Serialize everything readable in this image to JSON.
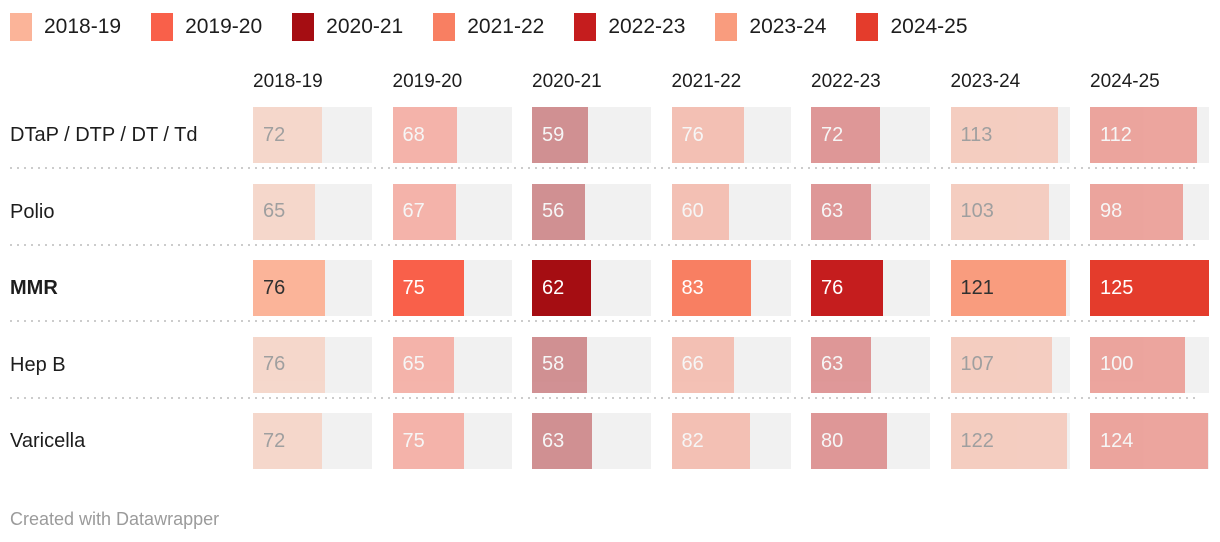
{
  "legend": {
    "items": [
      {
        "label": "2018-19",
        "color": "#FBB499"
      },
      {
        "label": "2019-20",
        "color": "#F9604A"
      },
      {
        "label": "2020-21",
        "color": "#A50D12"
      },
      {
        "label": "2021-22",
        "color": "#F87F62"
      },
      {
        "label": "2022-23",
        "color": "#C51D1E"
      },
      {
        "label": "2023-24",
        "color": "#F99C7E"
      },
      {
        "label": "2024-25",
        "color": "#E43C2C"
      }
    ]
  },
  "table": {
    "columns": [
      "2018-19",
      "2019-20",
      "2020-21",
      "2021-22",
      "2022-23",
      "2023-24",
      "2024-25"
    ],
    "scale_max": 125,
    "rows": [
      {
        "label": "DTaP / DTP / DT / Td",
        "bold": false,
        "muted": true,
        "values": [
          72,
          68,
          59,
          76,
          72,
          113,
          112
        ]
      },
      {
        "label": "Polio",
        "bold": false,
        "muted": true,
        "values": [
          65,
          67,
          56,
          60,
          63,
          103,
          98
        ]
      },
      {
        "label": "MMR",
        "bold": true,
        "muted": false,
        "values": [
          76,
          75,
          62,
          83,
          76,
          121,
          125
        ]
      },
      {
        "label": "Hep B",
        "bold": false,
        "muted": true,
        "values": [
          76,
          65,
          58,
          66,
          63,
          107,
          100
        ]
      },
      {
        "label": "Varicella",
        "bold": false,
        "muted": true,
        "values": [
          72,
          75,
          63,
          82,
          80,
          122,
          124
        ]
      }
    ]
  },
  "ui": {
    "background": "#FFFFFF",
    "track_color": "#F1F1F1",
    "separator_color": "#CCCCCC",
    "header_text_color": "#1D1D1D",
    "dark_value_text_color": "#303030",
    "light_value_text_color": "#FFFFFF",
    "footer_text_color": "#9B9B9B",
    "muted_row_opacity": 0.42,
    "dark_text_columns": [
      0,
      5
    ]
  },
  "footer": {
    "credit": "Created with Datawrapper"
  },
  "chart_data": {
    "type": "bar",
    "title": "",
    "categories": [
      "2018-19",
      "2019-20",
      "2020-21",
      "2021-22",
      "2022-23",
      "2023-24",
      "2024-25"
    ],
    "series": [
      {
        "name": "DTaP / DTP / DT / Td",
        "values": [
          72,
          68,
          59,
          76,
          72,
          113,
          112
        ]
      },
      {
        "name": "Polio",
        "values": [
          65,
          67,
          56,
          60,
          63,
          103,
          98
        ]
      },
      {
        "name": "MMR",
        "values": [
          76,
          75,
          62,
          83,
          76,
          121,
          125
        ]
      },
      {
        "name": "Hep B",
        "values": [
          76,
          65,
          58,
          66,
          63,
          107,
          100
        ]
      },
      {
        "name": "Varicella",
        "values": [
          72,
          75,
          63,
          82,
          80,
          122,
          124
        ]
      }
    ],
    "xlim": [
      0,
      125
    ],
    "xlabel": "",
    "ylabel": "",
    "grid": false,
    "legend_position": "top",
    "highlighted_series": "MMR",
    "bar_orientation": "horizontal"
  }
}
